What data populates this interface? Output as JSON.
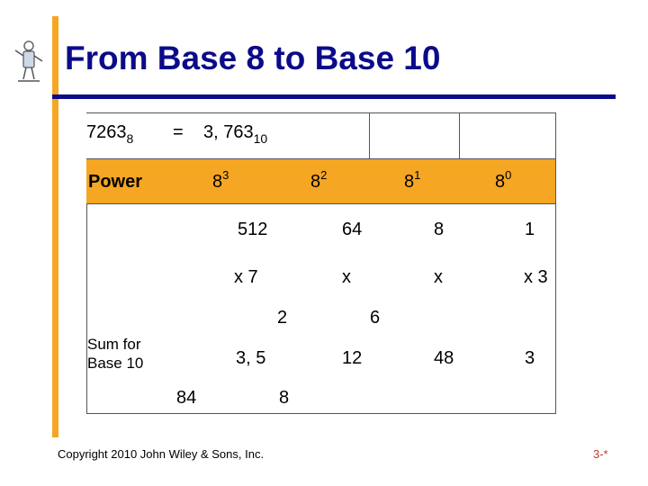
{
  "slide": {
    "title": "From Base 8 to Base 10",
    "copyright": "Copyright 2010 John Wiley & Sons, Inc.",
    "page_number": "3-*",
    "accent_color": "#f5a623",
    "title_color": "#0b0b8a"
  },
  "equation": {
    "base8_number": "7263",
    "base8_subscript": "8",
    "equals": "=",
    "base10_number": "3, 763",
    "base10_subscript": "10"
  },
  "power_row": {
    "label": "Power",
    "powers": [
      {
        "base": "8",
        "exp": "3"
      },
      {
        "base": "8",
        "exp": "2"
      },
      {
        "base": "8",
        "exp": "1"
      },
      {
        "base": "8",
        "exp": "0"
      }
    ]
  },
  "values_row": [
    "512",
    "64",
    "8",
    "1"
  ],
  "multiply_row": [
    "x 7",
    "x",
    "x",
    "x 3"
  ],
  "multiply_overflow": [
    "2",
    "6"
  ],
  "sum_row": {
    "label_line1": "Sum for",
    "label_line2": "Base 10",
    "values": [
      "3, 5",
      "12",
      "48",
      "3"
    ],
    "overflow": [
      "84",
      "8"
    ]
  }
}
